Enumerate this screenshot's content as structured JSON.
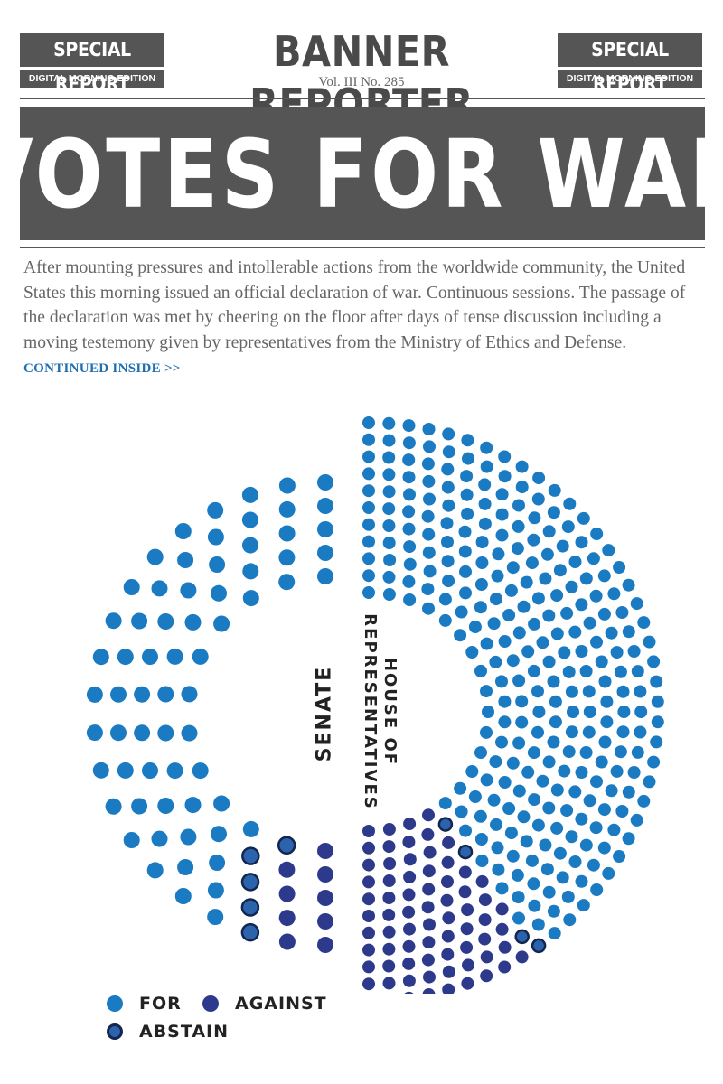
{
  "masthead": {
    "badge_title": "SPECIAL REPORT",
    "badge_subtitle": "DIGITAL MORNING EDITION",
    "title": "BANNER REPORTER",
    "volume": "Vol. III No. 285"
  },
  "headline": "VOTES FOR WAR",
  "article": {
    "body": "After mounting pressures and intollerable actions from the worldwide community, the United States this morning issued an official declaration of war. Continuous sessions. The passage of the declaration was met by cheering on the floor after days of tense discussion including a moving testemony given by representatives from the Ministry of Ethics and Defense.",
    "continued_link": "CONTINUED INSIDE >>"
  },
  "chart_data": {
    "type": "parliament",
    "chambers": [
      {
        "name": "SENATE",
        "for": 83,
        "abstain": 6,
        "against": 11
      },
      {
        "name": "HOUSE OF REPRESENTATIVES",
        "for": 344,
        "abstain": 5,
        "against": 86
      }
    ],
    "legend": [
      {
        "label": "FOR",
        "color": "#1a7ac2"
      },
      {
        "label": "AGAINST",
        "color": "#2d3a8c"
      },
      {
        "label": "ABSTAIN",
        "color": "#2b63ad"
      }
    ],
    "colors": {
      "for": "#1a7ac2",
      "against": "#2d3a8c",
      "abstain": "#2b63ad",
      "abstain_ring": "#12264f"
    }
  },
  "labels": {
    "senate": "SENATE",
    "house_line1": "HOUSE OF",
    "house_line2": "REPRESENTATIVES"
  }
}
